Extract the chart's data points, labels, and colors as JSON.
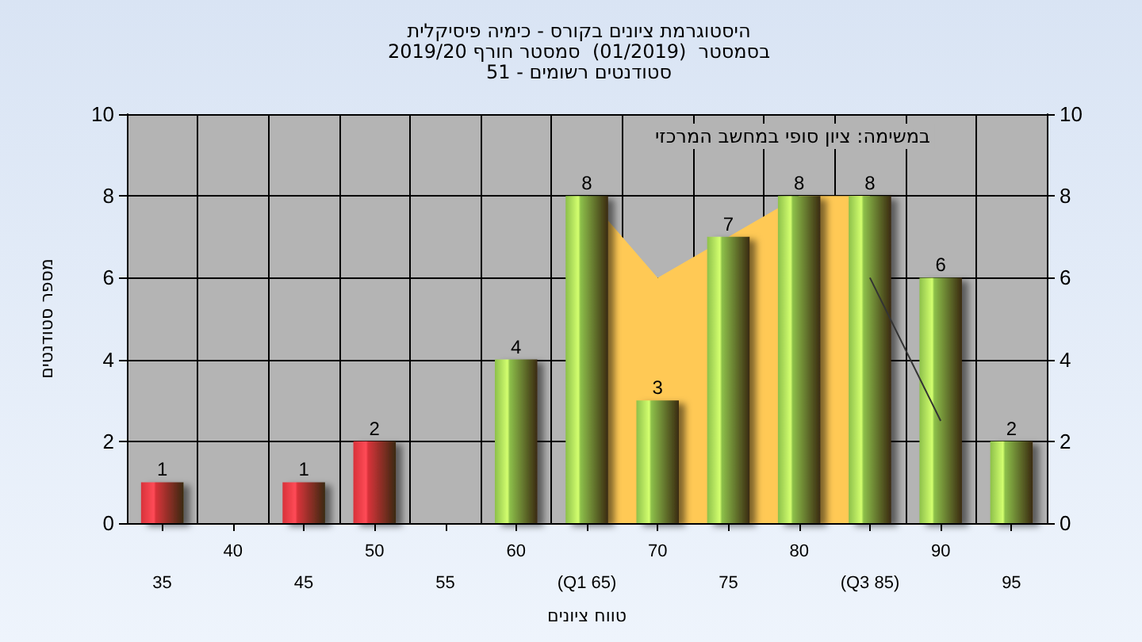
{
  "chart_data": {
    "type": "bar",
    "title": "היסטוגרמת ציונים בקורס - כימיה פיסיקלית\nבסמסטר  (01/2019)  סמסטר חורף 2019/20\nסטודנטים רשומים - 51",
    "xlabel": "טווח ציונים",
    "ylabel": "מספר סטודנטים",
    "annotations": [
      "במשימה: ציון סופי במחשב המרכזי"
    ],
    "categories": [
      "35",
      "40",
      "45",
      "50",
      "55",
      "60",
      "(Q1 65)",
      "70",
      "75",
      "80",
      "(Q3 85)",
      "90",
      "95"
    ],
    "series": [
      {
        "type": "area",
        "color": "#ffc955",
        "values": [
          null,
          null,
          null,
          null,
          null,
          null,
          8,
          6,
          null,
          8,
          8,
          null,
          null
        ]
      },
      {
        "type": "line",
        "color": "#333333",
        "values": [
          null,
          null,
          null,
          null,
          null,
          null,
          null,
          null,
          null,
          null,
          6,
          2.5,
          null
        ]
      },
      {
        "colors": [
          "#d8323a",
          "#d8323a",
          "#d8323a",
          "#d8323a",
          "#d8323a",
          "#8dc04a",
          "#8dc04a",
          "#8dc04a",
          "#8dc04a",
          "#8dc04a",
          "#8dc04a",
          "#8dc04a",
          "#8dc04a"
        ],
        "values": [
          1,
          0,
          1,
          2,
          0,
          4,
          8,
          3,
          7,
          8,
          8,
          6,
          2
        ],
        "value_labels": [
          "1",
          null,
          "1",
          "2",
          null,
          "4",
          "8",
          "3",
          "7",
          "8",
          "8",
          "6",
          "2"
        ]
      }
    ],
    "ylim": [
      0,
      10
    ],
    "yticks": [
      0,
      2,
      4,
      6,
      8,
      10
    ],
    "y2lim": [
      0,
      10
    ],
    "y2ticks": [
      0,
      2,
      4,
      6,
      8,
      10
    ],
    "grid": true
  }
}
